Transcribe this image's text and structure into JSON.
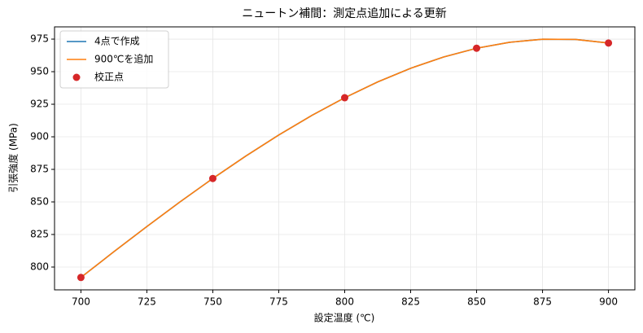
{
  "chart_data": {
    "type": "line",
    "title": "ニュートン補間：測定点追加による更新",
    "xlabel": "設定温度 (℃)",
    "ylabel": "引張強度 (MPa)",
    "xlim": [
      690,
      910
    ],
    "ylim": [
      782.5,
      984.4
    ],
    "xticks": [
      700,
      725,
      750,
      775,
      800,
      825,
      850,
      875,
      900
    ],
    "yticks": [
      800,
      825,
      850,
      875,
      900,
      925,
      950,
      975
    ],
    "grid": true,
    "legend": "upper left",
    "series": [
      {
        "name": "4点で作成",
        "type": "line",
        "color": "#1f77b4",
        "x": [
          700,
          712.5,
          725,
          737.5,
          750,
          762.5,
          775,
          787.5,
          800,
          812.5,
          825,
          837.5,
          850,
          862.5,
          875,
          887.5,
          900
        ],
        "values": [
          792,
          811.77,
          831.13,
          849.92,
          868,
          885.2,
          901.38,
          916.36,
          930,
          942.14,
          952.63,
          961.3,
          968,
          972.58,
          974.88,
          974.73,
          972
        ]
      },
      {
        "name": "900℃を追加",
        "type": "line",
        "color": "#ff7f0e",
        "x": [
          700,
          712.5,
          725,
          737.5,
          750,
          762.5,
          775,
          787.5,
          800,
          812.5,
          825,
          837.5,
          850,
          862.5,
          875,
          887.5,
          900
        ],
        "values": [
          792,
          811.77,
          831.13,
          849.92,
          868,
          885.2,
          901.38,
          916.36,
          930,
          942.14,
          952.63,
          961.3,
          968,
          972.58,
          974.88,
          974.73,
          972
        ]
      },
      {
        "name": "校正点",
        "type": "scatter",
        "color": "#d62728",
        "x": [
          700,
          750,
          800,
          850,
          900
        ],
        "values": [
          792,
          868,
          930,
          968,
          972
        ]
      }
    ]
  }
}
